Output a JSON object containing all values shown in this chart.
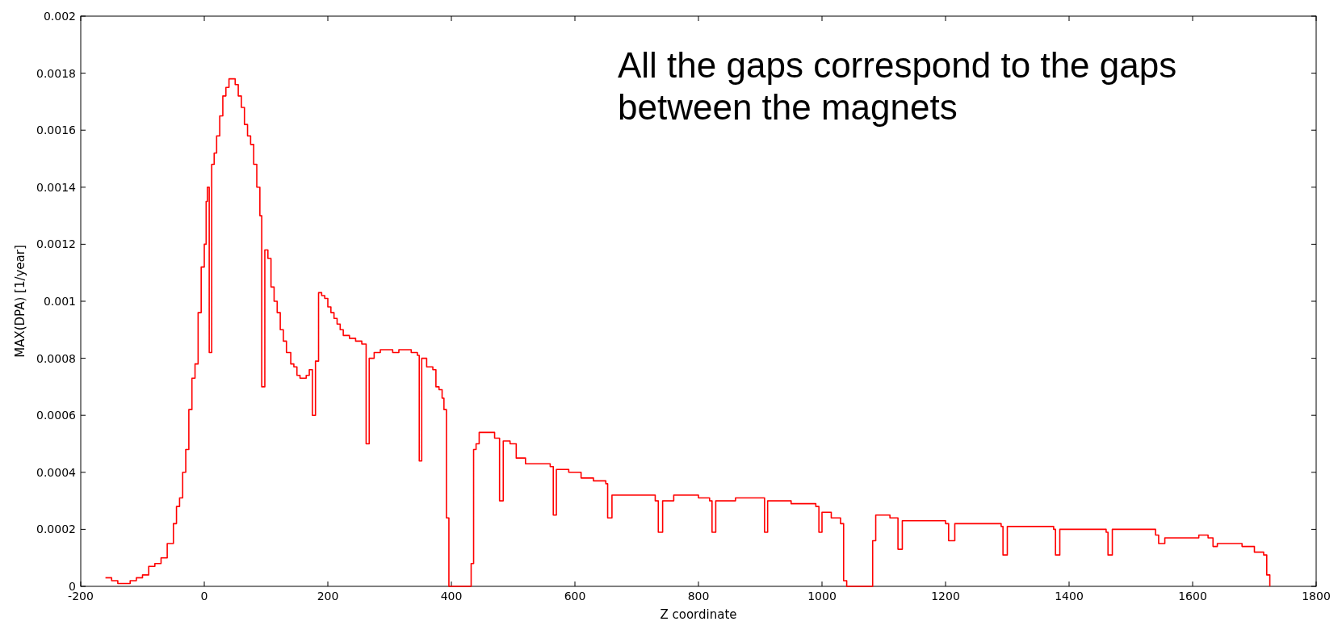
{
  "chart_data": {
    "type": "step",
    "xlabel": "Z coordinate",
    "ylabel": "MAX(DPA) [1/year]",
    "annotations": [
      "All the gaps correspond to the gaps between the magnets"
    ],
    "xlim": [
      -200,
      1800
    ],
    "xticks": [
      -200,
      0,
      200,
      400,
      600,
      800,
      1000,
      1200,
      1400,
      1600,
      1800
    ],
    "ylim": [
      0,
      0.002
    ],
    "yticks": [
      0,
      0.0002,
      0.0004,
      0.0006,
      0.0008,
      0.001,
      0.0012,
      0.0014,
      0.0016,
      0.0018,
      0.002
    ],
    "grid": false,
    "marker": "none",
    "line_style": "solid",
    "series": [
      {
        "color": "#ff0000",
        "x": [
          -160,
          -150,
          -140,
          -130,
          -120,
          -110,
          -100,
          -90,
          -80,
          -70,
          -60,
          -50,
          -45,
          -40,
          -35,
          -30,
          -25,
          -20,
          -15,
          -10,
          -5,
          0,
          3,
          5,
          8,
          12,
          16,
          20,
          25,
          30,
          35,
          40,
          45,
          50,
          55,
          60,
          65,
          70,
          75,
          80,
          85,
          90,
          93,
          98,
          103,
          108,
          113,
          118,
          123,
          128,
          133,
          140,
          145,
          150,
          155,
          160,
          165,
          170,
          175,
          180,
          185,
          190,
          195,
          200,
          205,
          210,
          215,
          220,
          225,
          235,
          245,
          255,
          262,
          267,
          275,
          285,
          295,
          305,
          315,
          325,
          335,
          345,
          348,
          352,
          360,
          370,
          375,
          380,
          385,
          388,
          392,
          396,
          432,
          436,
          440,
          445,
          460,
          470,
          478,
          484,
          495,
          505,
          520,
          540,
          560,
          565,
          570,
          590,
          610,
          630,
          650,
          653,
          660,
          690,
          730,
          735,
          742,
          760,
          800,
          818,
          822,
          828,
          860,
          900,
          907,
          912,
          950,
          990,
          995,
          1000,
          1015,
          1030,
          1035,
          1040,
          1082,
          1087,
          1110,
          1123,
          1130,
          1200,
          1205,
          1215,
          1290,
          1293,
          1300,
          1375,
          1378,
          1385,
          1460,
          1463,
          1470,
          1540,
          1545,
          1555,
          1610,
          1625,
          1633,
          1640,
          1680,
          1700,
          1715,
          1720,
          1725
        ],
        "values": [
          3e-05,
          2e-05,
          1e-05,
          1e-05,
          2e-05,
          3e-05,
          4e-05,
          7e-05,
          8e-05,
          0.0001,
          0.00015,
          0.00022,
          0.00028,
          0.00031,
          0.0004,
          0.00048,
          0.00062,
          0.00073,
          0.00078,
          0.00096,
          0.00112,
          0.0012,
          0.00135,
          0.0014,
          0.00082,
          0.00148,
          0.00152,
          0.00158,
          0.00165,
          0.00172,
          0.00175,
          0.00178,
          0.00178,
          0.00176,
          0.00172,
          0.00168,
          0.00162,
          0.00158,
          0.00155,
          0.00148,
          0.0014,
          0.0013,
          0.0007,
          0.00118,
          0.00115,
          0.00105,
          0.001,
          0.00096,
          0.0009,
          0.00086,
          0.00082,
          0.00078,
          0.00077,
          0.00074,
          0.00073,
          0.00073,
          0.00074,
          0.00076,
          0.0006,
          0.00079,
          0.00103,
          0.00102,
          0.00101,
          0.00098,
          0.00096,
          0.00094,
          0.00092,
          0.0009,
          0.00088,
          0.00087,
          0.00086,
          0.00085,
          0.0005,
          0.0008,
          0.00082,
          0.00083,
          0.00083,
          0.00082,
          0.00083,
          0.00083,
          0.00082,
          0.00081,
          0.00044,
          0.0008,
          0.00077,
          0.00076,
          0.0007,
          0.00069,
          0.00066,
          0.00062,
          0.00024,
          0,
          8e-05,
          0.00048,
          0.0005,
          0.00054,
          0.00054,
          0.00052,
          0.0003,
          0.00051,
          0.0005,
          0.00045,
          0.00043,
          0.00043,
          0.00042,
          0.00025,
          0.00041,
          0.0004,
          0.00038,
          0.00037,
          0.00036,
          0.00024,
          0.00032,
          0.00032,
          0.0003,
          0.00019,
          0.0003,
          0.00032,
          0.00031,
          0.0003,
          0.00019,
          0.0003,
          0.00031,
          0.00031,
          0.00019,
          0.0003,
          0.00029,
          0.00028,
          0.00019,
          0.00026,
          0.00024,
          0.00022,
          2e-05,
          0,
          0.00016,
          0.00025,
          0.00024,
          0.00013,
          0.00023,
          0.00022,
          0.00016,
          0.00022,
          0.00021,
          0.00011,
          0.00021,
          0.0002,
          0.00011,
          0.0002,
          0.00019,
          0.00011,
          0.0002,
          0.00018,
          0.00015,
          0.00017,
          0.00018,
          0.00017,
          0.00014,
          0.00015,
          0.00014,
          0.00012,
          0.00011,
          4e-05,
          0
        ]
      }
    ]
  }
}
